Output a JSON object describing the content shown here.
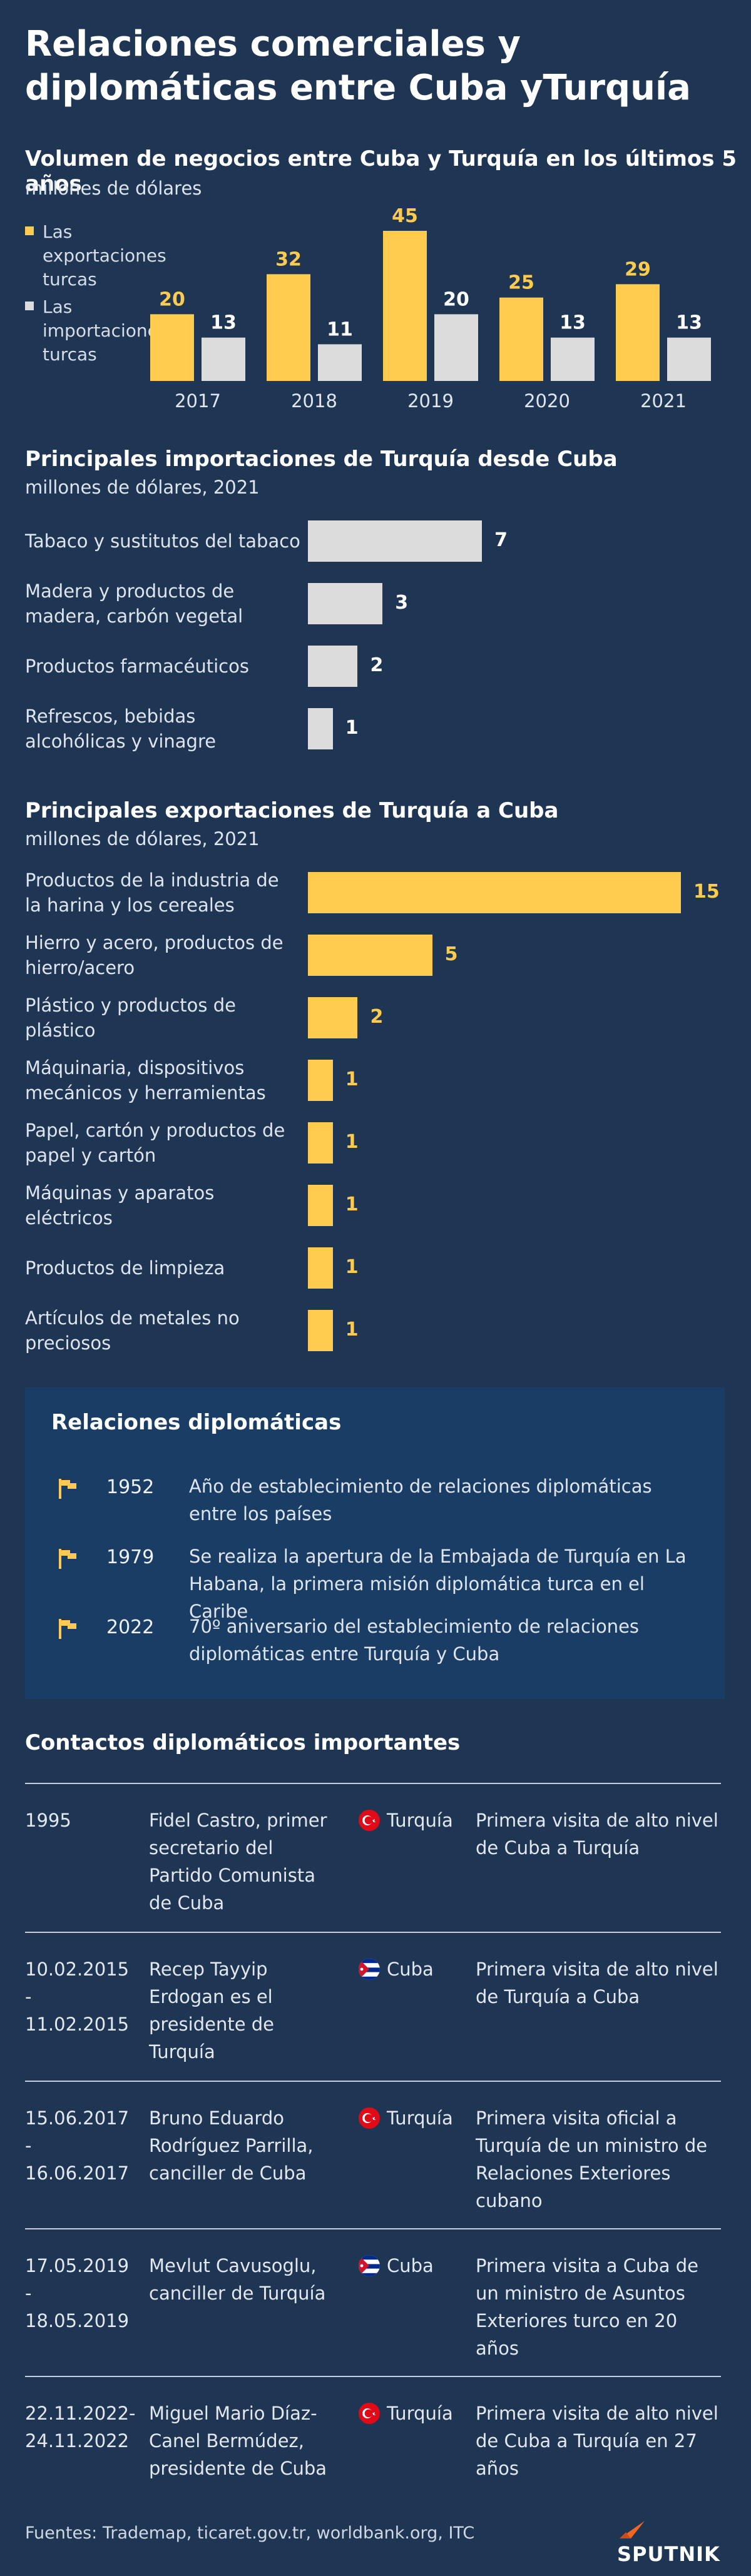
{
  "title": "Relaciones comerciales y diplomáticas entre Cuba yTurquía",
  "section1": {
    "title": "Volumen de negocios entre Cuba y Turquía en los últimos 5 años",
    "unit": "millones de dólares"
  },
  "section2": {
    "title": "Principales importaciones de Turquía desde Cuba",
    "unit": "millones de dólares, 2021"
  },
  "section3": {
    "title": "Principales exportaciones de Turquía a Cuba",
    "unit": "millones de dólares, 2021"
  },
  "colors": {
    "background": "#1e3553",
    "yellow": "#ffcb4f",
    "gray": "#dcdcdc",
    "box": "#1a3d65"
  },
  "chart_data": [
    {
      "type": "bar",
      "categories": [
        "2017",
        "2018",
        "2019",
        "2020",
        "2021"
      ],
      "series": [
        {
          "name": "Las exportaciones turcas",
          "values": [
            20,
            32,
            45,
            25,
            29
          ],
          "color": "#ffcb4f"
        },
        {
          "name": "Las importaciones turcas",
          "values": [
            13,
            11,
            20,
            13,
            13
          ],
          "color": "#dcdcdc"
        }
      ],
      "ylim": [
        0,
        45
      ],
      "legend": "left",
      "grid": false
    },
    {
      "type": "bar",
      "orientation": "horizontal",
      "categories": [
        "Tabaco y sustitutos del tabaco",
        "Madera y productos de madera, carbón vegetal",
        "Productos farmacéuticos",
        "Refrescos, bebidas alcohólicas y vinagre"
      ],
      "values": [
        7,
        3,
        2,
        1
      ],
      "color": "#dcdcdc",
      "xlim": [
        0,
        15
      ]
    },
    {
      "type": "bar",
      "orientation": "horizontal",
      "categories": [
        "Productos de la industria de la harina y los cereales",
        "Hierro y acero, productos de hierro/acero",
        "Plástico y productos de plástico",
        "Máquinaria, dispositivos mecánicos y herramientas",
        "Papel, cartón y productos de papel y cartón",
        "Máquinas y aparatos eléctricos",
        "Productos de limpieza",
        "Artículos de metales no preciosos"
      ],
      "values": [
        15,
        5,
        2,
        1,
        1,
        1,
        1,
        1
      ],
      "color": "#ffcb4f",
      "xlim": [
        0,
        15
      ]
    }
  ],
  "diplomatic": {
    "title": "Relaciones diplomáticas",
    "icon": "flag-icon",
    "items": [
      {
        "year": "1952",
        "text": "Año de establecimiento de relaciones diplomáticas entre los países"
      },
      {
        "year": "1979",
        "text": "Se realiza la apertura de la Embajada de Turquía en La Habana, la primera misión diplomática turca en el Caribe"
      },
      {
        "year": "2022",
        "text": "70º aniversario del establecimiento de relaciones diplomáticas entre Turquía y Cuba"
      }
    ]
  },
  "contacts": {
    "title": "Contactos diplomáticos importantes",
    "rows": [
      {
        "date": "1995",
        "person": "Fidel Castro, primer secretario del Partido Comunista de Cuba",
        "flag": "turkey-flag-icon",
        "country": "Turquía",
        "desc": "Primera visita de alto nivel de Cuba a Turquía"
      },
      {
        "date": "10.02.2015 - 11.02.2015",
        "person": "Recep Tayyip Erdogan es el presidente de Turquía",
        "flag": "cuba-flag-icon",
        "country": "Cuba",
        "desc": "Primera visita de alto nivel de Turquía a Cuba"
      },
      {
        "date": "15.06.2017 - 16.06.2017",
        "person": "Bruno Eduardo Rodríguez Parrilla, canciller de Cuba",
        "flag": "turkey-flag-icon",
        "country": "Turquía",
        "desc": "Primera visita oficial a Turquía de un ministro de Relaciones Exteriores cubano"
      },
      {
        "date": "17.05.2019 - 18.05.2019",
        "person": "Mevlut Cavusoglu, canciller de Turquía",
        "flag": "cuba-flag-icon",
        "country": "Cuba",
        "desc": "Primera visita a Cuba de un ministro de Asuntos Exteriores turco en 20 años"
      },
      {
        "date": "22.11.2022- 24.11.2022",
        "person": "Miguel Mario Díaz-Canel Bermúdez, presidente de Cuba",
        "flag": "turkey-flag-icon",
        "country": "Turquía",
        "desc": "Primera visita de alto nivel de Cuba a Turquía en 27 años"
      }
    ]
  },
  "footer": {
    "sources": "Fuentes: Trademap, ticaret.gov.tr, worldbank.org, ITC",
    "brand": "SPUTNIK"
  }
}
